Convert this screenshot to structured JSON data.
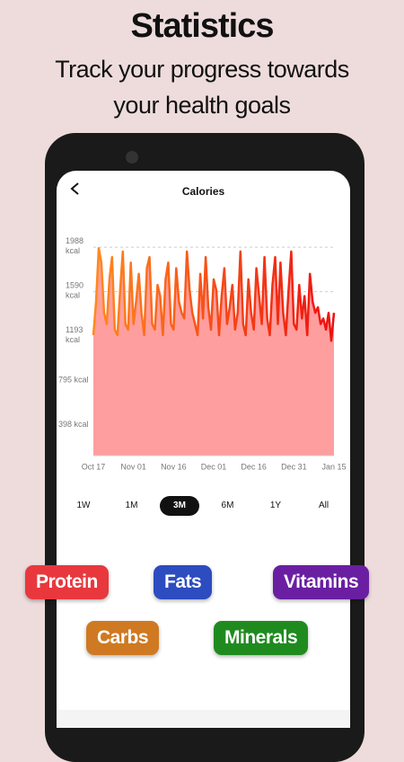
{
  "header": {
    "title": "Statistics",
    "subtitle_lines": [
      "Track your progress towards",
      "your health goals"
    ]
  },
  "screen": {
    "title": "Calories",
    "ranges": [
      "1W",
      "1M",
      "3M",
      "6M",
      "1Y",
      "All"
    ],
    "selected_range": "3M",
    "tags": [
      "Protein",
      "Fats",
      "Vitamins",
      "Carbs",
      "Minerals"
    ]
  },
  "chart_data": {
    "type": "line",
    "categories": [
      "Oct 17",
      null,
      null,
      null,
      null,
      null,
      null,
      null,
      null,
      null,
      null,
      null,
      null,
      null,
      null,
      "Nov 01",
      null,
      null,
      null,
      null,
      null,
      null,
      null,
      null,
      null,
      null,
      null,
      null,
      null,
      null,
      "Nov 16",
      null,
      null,
      null,
      null,
      null,
      null,
      null,
      null,
      null,
      null,
      null,
      null,
      null,
      null,
      "Dec 01",
      null,
      null,
      null,
      null,
      null,
      null,
      null,
      null,
      null,
      null,
      null,
      null,
      null,
      null,
      "Dec 16",
      null,
      null,
      null,
      null,
      null,
      null,
      null,
      null,
      null,
      null,
      null,
      null,
      null,
      null,
      "Dec 31",
      null,
      null,
      null,
      null,
      null,
      null,
      null,
      null,
      null,
      null,
      null,
      null,
      null,
      null,
      "Jan 15"
    ],
    "values": [
      1200,
      1500,
      1980,
      1850,
      1400,
      1300,
      1700,
      1900,
      1250,
      1200,
      1600,
      1950,
      1300,
      1250,
      1850,
      1300,
      1500,
      1750,
      1400,
      1200,
      1800,
      1900,
      1300,
      1250,
      1650,
      1550,
      1200,
      1700,
      1850,
      1300,
      1250,
      1800,
      1500,
      1400,
      1350,
      1950,
      1600,
      1400,
      1300,
      1200,
      1750,
      1350,
      1900,
      1450,
      1250,
      1700,
      1600,
      1200,
      1550,
      1800,
      1300,
      1450,
      1650,
      1250,
      1400,
      1950,
      1300,
      1200,
      1700,
      1400,
      1250,
      1800,
      1550,
      1300,
      1900,
      1350,
      1200,
      1650,
      1900,
      1300,
      1850,
      1400,
      1200,
      1600,
      1950,
      1300,
      1250,
      1650,
      1350,
      1550,
      1200,
      1750,
      1500,
      1400,
      1450,
      1300,
      1350,
      1250,
      1400,
      1150,
      1400
    ],
    "colors": [
      "#ff8a1e",
      "#ee1010"
    ],
    "fill": "#ff9e9e",
    "ylim": [
      120,
      2070
    ],
    "yticks": [
      {
        "value": 398,
        "label": "398 kcal"
      },
      {
        "value": 795,
        "label": "795 kcal"
      },
      {
        "value": 1193,
        "label": "1193 kcal"
      },
      {
        "value": 1590,
        "label": "1590 kcal"
      },
      {
        "value": 1988,
        "label": "1988 kcal"
      }
    ],
    "grid": true
  }
}
